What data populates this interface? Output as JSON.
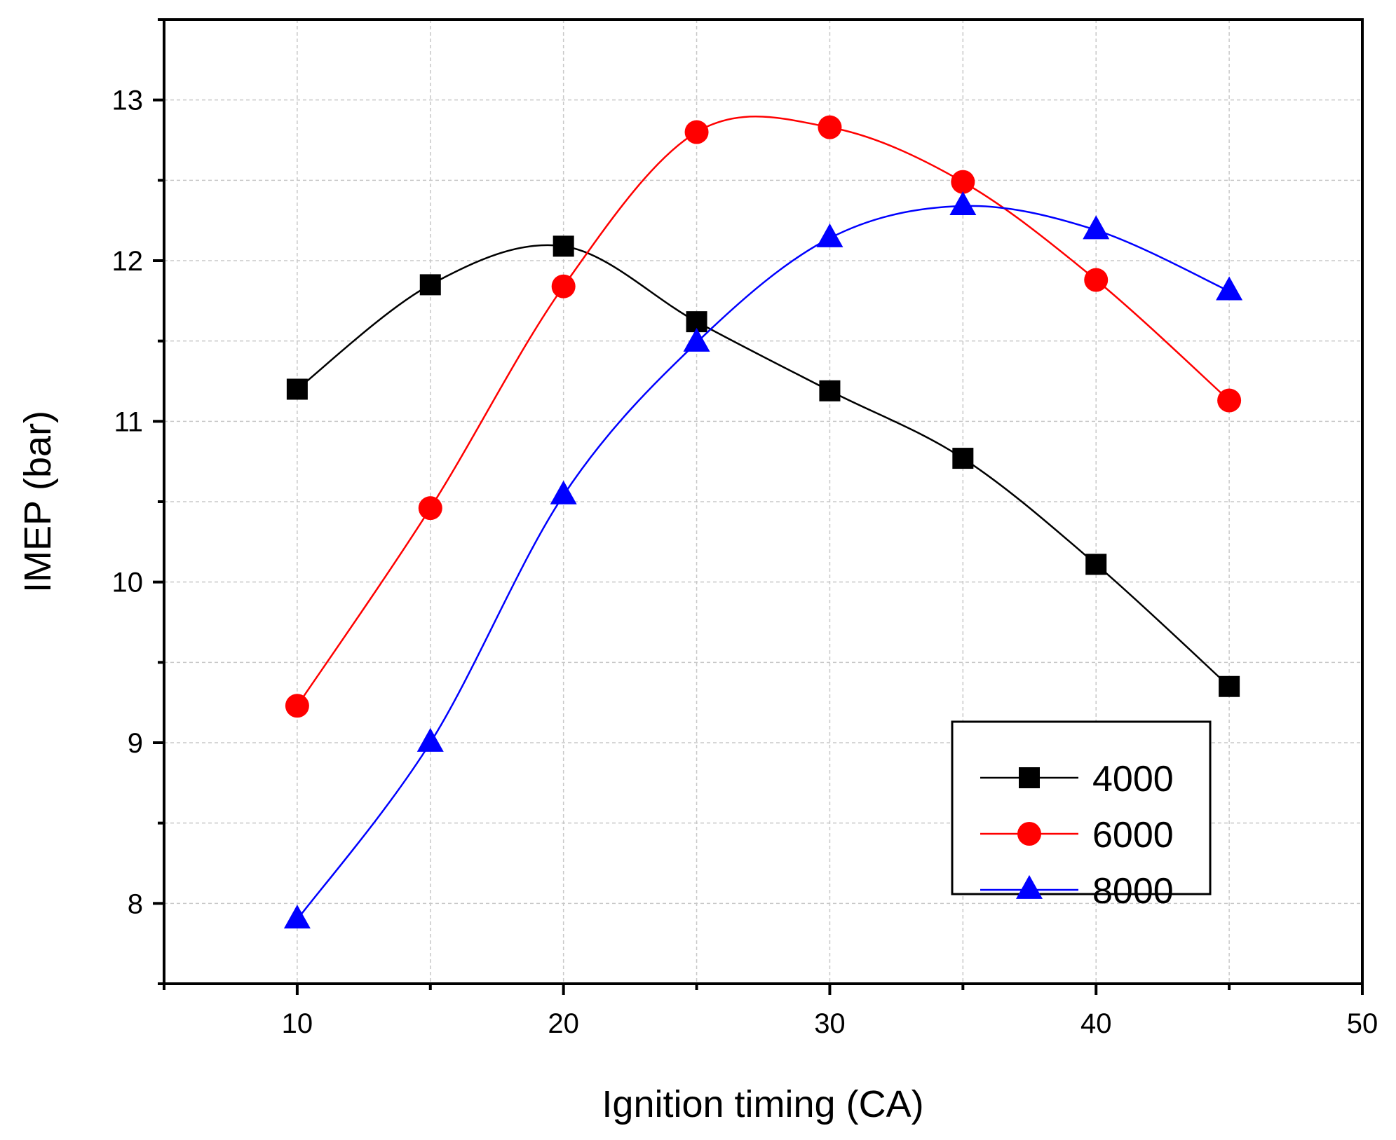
{
  "chart_data": {
    "type": "line",
    "title": "",
    "xlabel": "Ignition timing (CA)",
    "ylabel": "IMEP (bar)",
    "xlim": [
      5,
      50
    ],
    "ylim": [
      7.5,
      13.5
    ],
    "xticks": [
      10,
      20,
      30,
      40,
      50
    ],
    "xticks_minor": [
      5,
      15,
      25,
      35,
      45
    ],
    "yticks": [
      8,
      9,
      10,
      11,
      12,
      13
    ],
    "yticks_minor": [
      7.5,
      8.5,
      9.5,
      10.5,
      11.5,
      12.5,
      13.5
    ],
    "grid": true,
    "legend_position": "bottom-right",
    "x": [
      10,
      15,
      20,
      25,
      30,
      35,
      40,
      45
    ],
    "series": [
      {
        "name": "4000",
        "color": "#000000",
        "marker": "square",
        "values": [
          11.2,
          11.85,
          12.09,
          11.62,
          11.19,
          10.77,
          10.11,
          9.35
        ]
      },
      {
        "name": "6000",
        "color": "#ff0000",
        "marker": "circle",
        "values": [
          9.23,
          10.46,
          11.84,
          12.8,
          12.83,
          12.49,
          11.88,
          11.13
        ]
      },
      {
        "name": "8000",
        "color": "#0000ff",
        "marker": "triangle",
        "values": [
          7.9,
          9.0,
          10.54,
          11.49,
          12.14,
          12.34,
          12.19,
          11.81
        ]
      }
    ]
  }
}
